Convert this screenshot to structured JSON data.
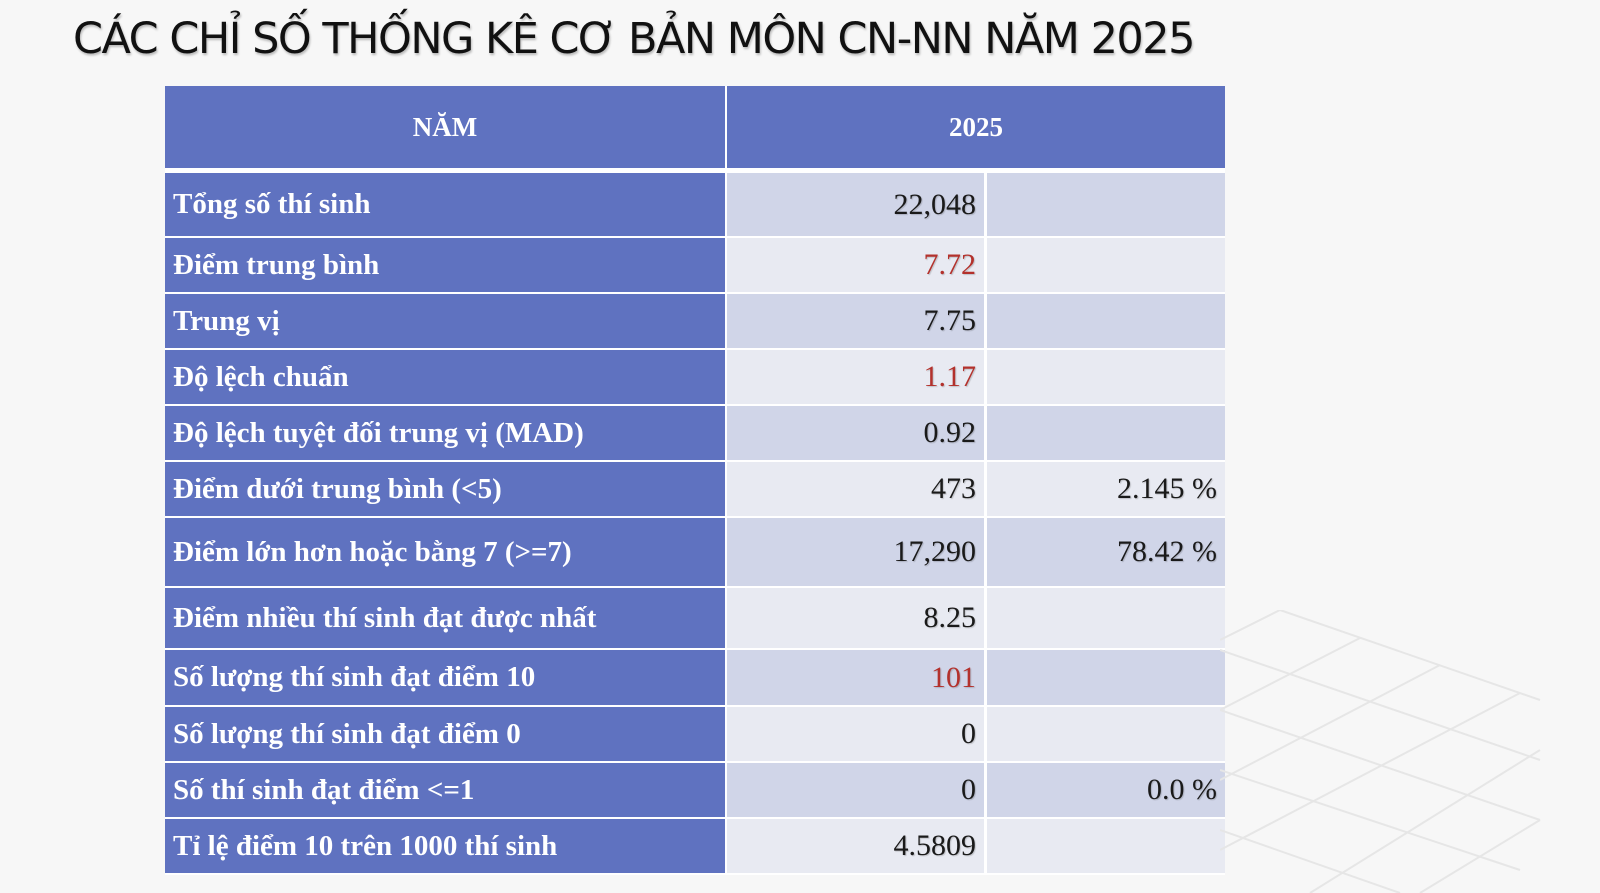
{
  "title": "CÁC CHỈ SỐ THỐNG KÊ CƠ BẢN MÔN CN-NN NĂM 2025",
  "table": {
    "header": {
      "col1": "NĂM",
      "col2": "2025"
    },
    "highlight_color": "#b3312c",
    "header_color": "#5f72c0",
    "rows": [
      {
        "label": "Tổng số thí sinh",
        "value": "22,048",
        "pct": "",
        "highlight": false
      },
      {
        "label": "Điểm trung bình",
        "value": "7.72",
        "pct": "",
        "highlight": true
      },
      {
        "label": "Trung vị",
        "value": "7.75",
        "pct": "",
        "highlight": false
      },
      {
        "label": "Độ lệch chuẩn",
        "value": "1.17",
        "pct": "",
        "highlight": true
      },
      {
        "label": "Độ lệch tuyệt đối trung vị (MAD)",
        "value": "0.92",
        "pct": "",
        "highlight": false
      },
      {
        "label": "Điểm dưới trung bình (<5)",
        "value": "473",
        "pct": "2.145 %",
        "highlight": false
      },
      {
        "label": "Điểm lớn hơn hoặc bằng 7 (>=7)",
        "value": "17,290",
        "pct": "78.42 %",
        "highlight": false
      },
      {
        "label": "Điểm nhiều thí sinh đạt được nhất",
        "value": "8.25",
        "pct": "",
        "highlight": false
      },
      {
        "label": "Số lượng thí sinh đạt điểm 10",
        "value": "101",
        "pct": "",
        "highlight": true
      },
      {
        "label": "Số lượng thí sinh đạt điểm 0",
        "value": "0",
        "pct": "",
        "highlight": false
      },
      {
        "label": "Số thí sinh đạt điểm <=1",
        "value": "0",
        "pct": "0.0 %",
        "highlight": false
      },
      {
        "label": "Tỉ lệ điểm 10 trên 1000 thí sinh",
        "value": "4.5809",
        "pct": "",
        "highlight": false
      }
    ]
  }
}
